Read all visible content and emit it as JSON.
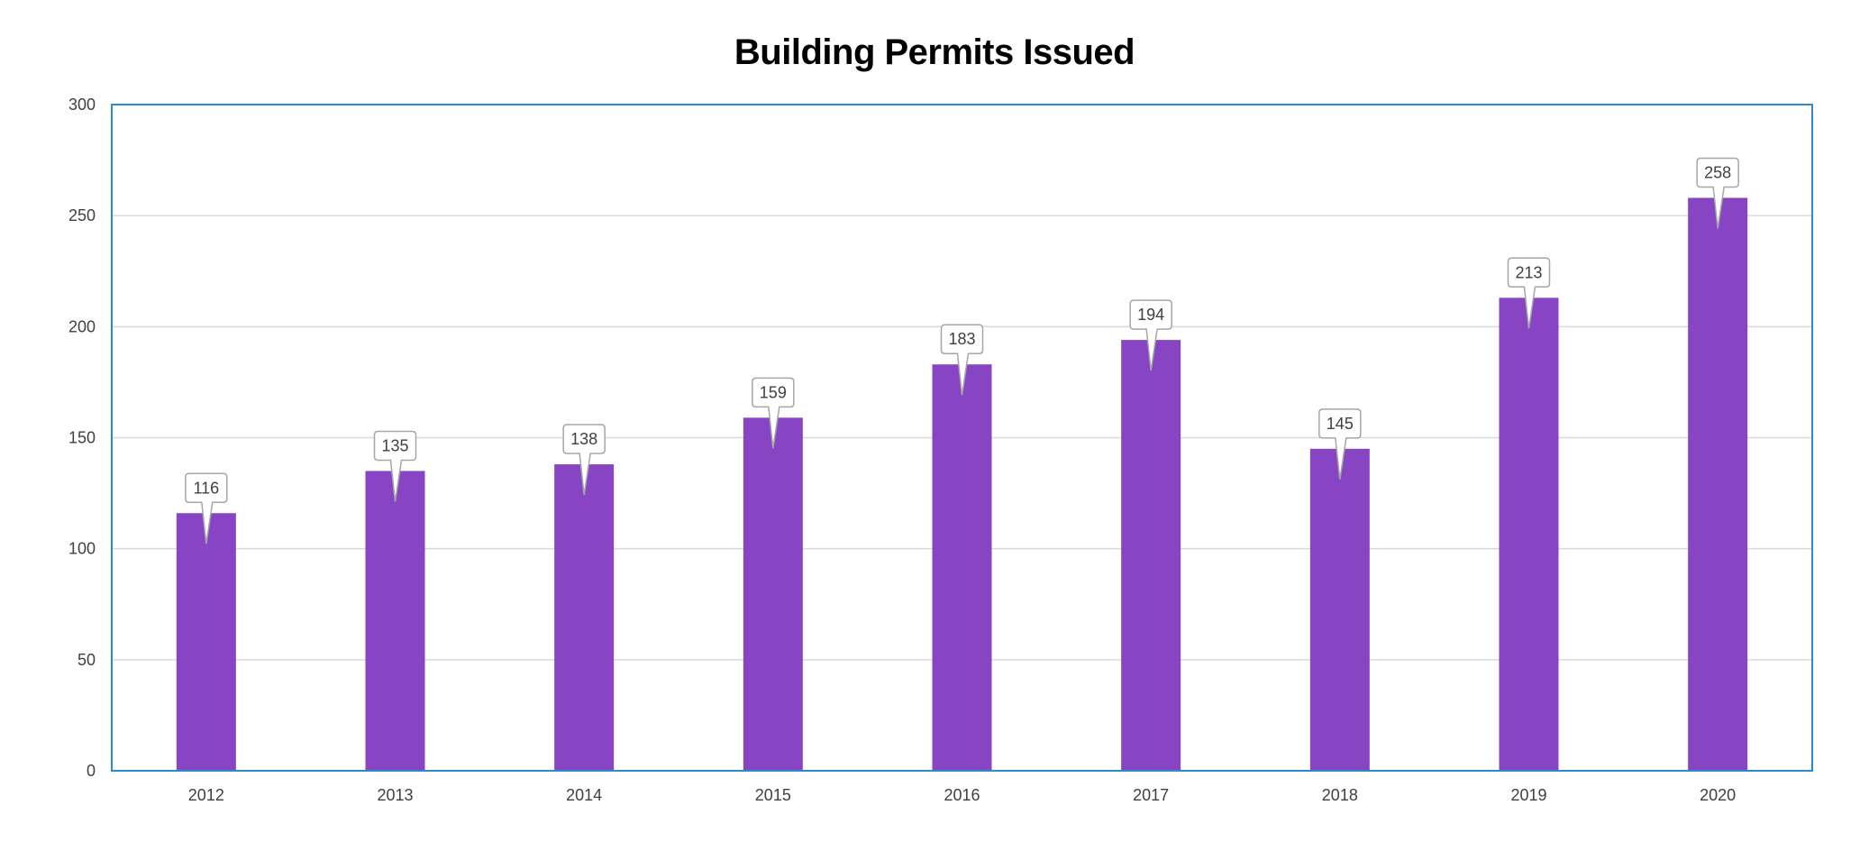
{
  "chart_data": {
    "type": "bar",
    "title": "Building Permits Issued",
    "categories": [
      "2012",
      "2013",
      "2014",
      "2015",
      "2016",
      "2017",
      "2018",
      "2019",
      "2020"
    ],
    "values": [
      116,
      135,
      138,
      159,
      183,
      194,
      145,
      213,
      258
    ],
    "ylim": [
      0,
      300
    ],
    "yticks": [
      0,
      50,
      100,
      150,
      200,
      250,
      300
    ],
    "grid": true,
    "data_labels": "callout",
    "colors": {
      "bar": "#8745C3",
      "plot_border": "#2E8BC9",
      "grid": "#D9D9D9"
    }
  }
}
